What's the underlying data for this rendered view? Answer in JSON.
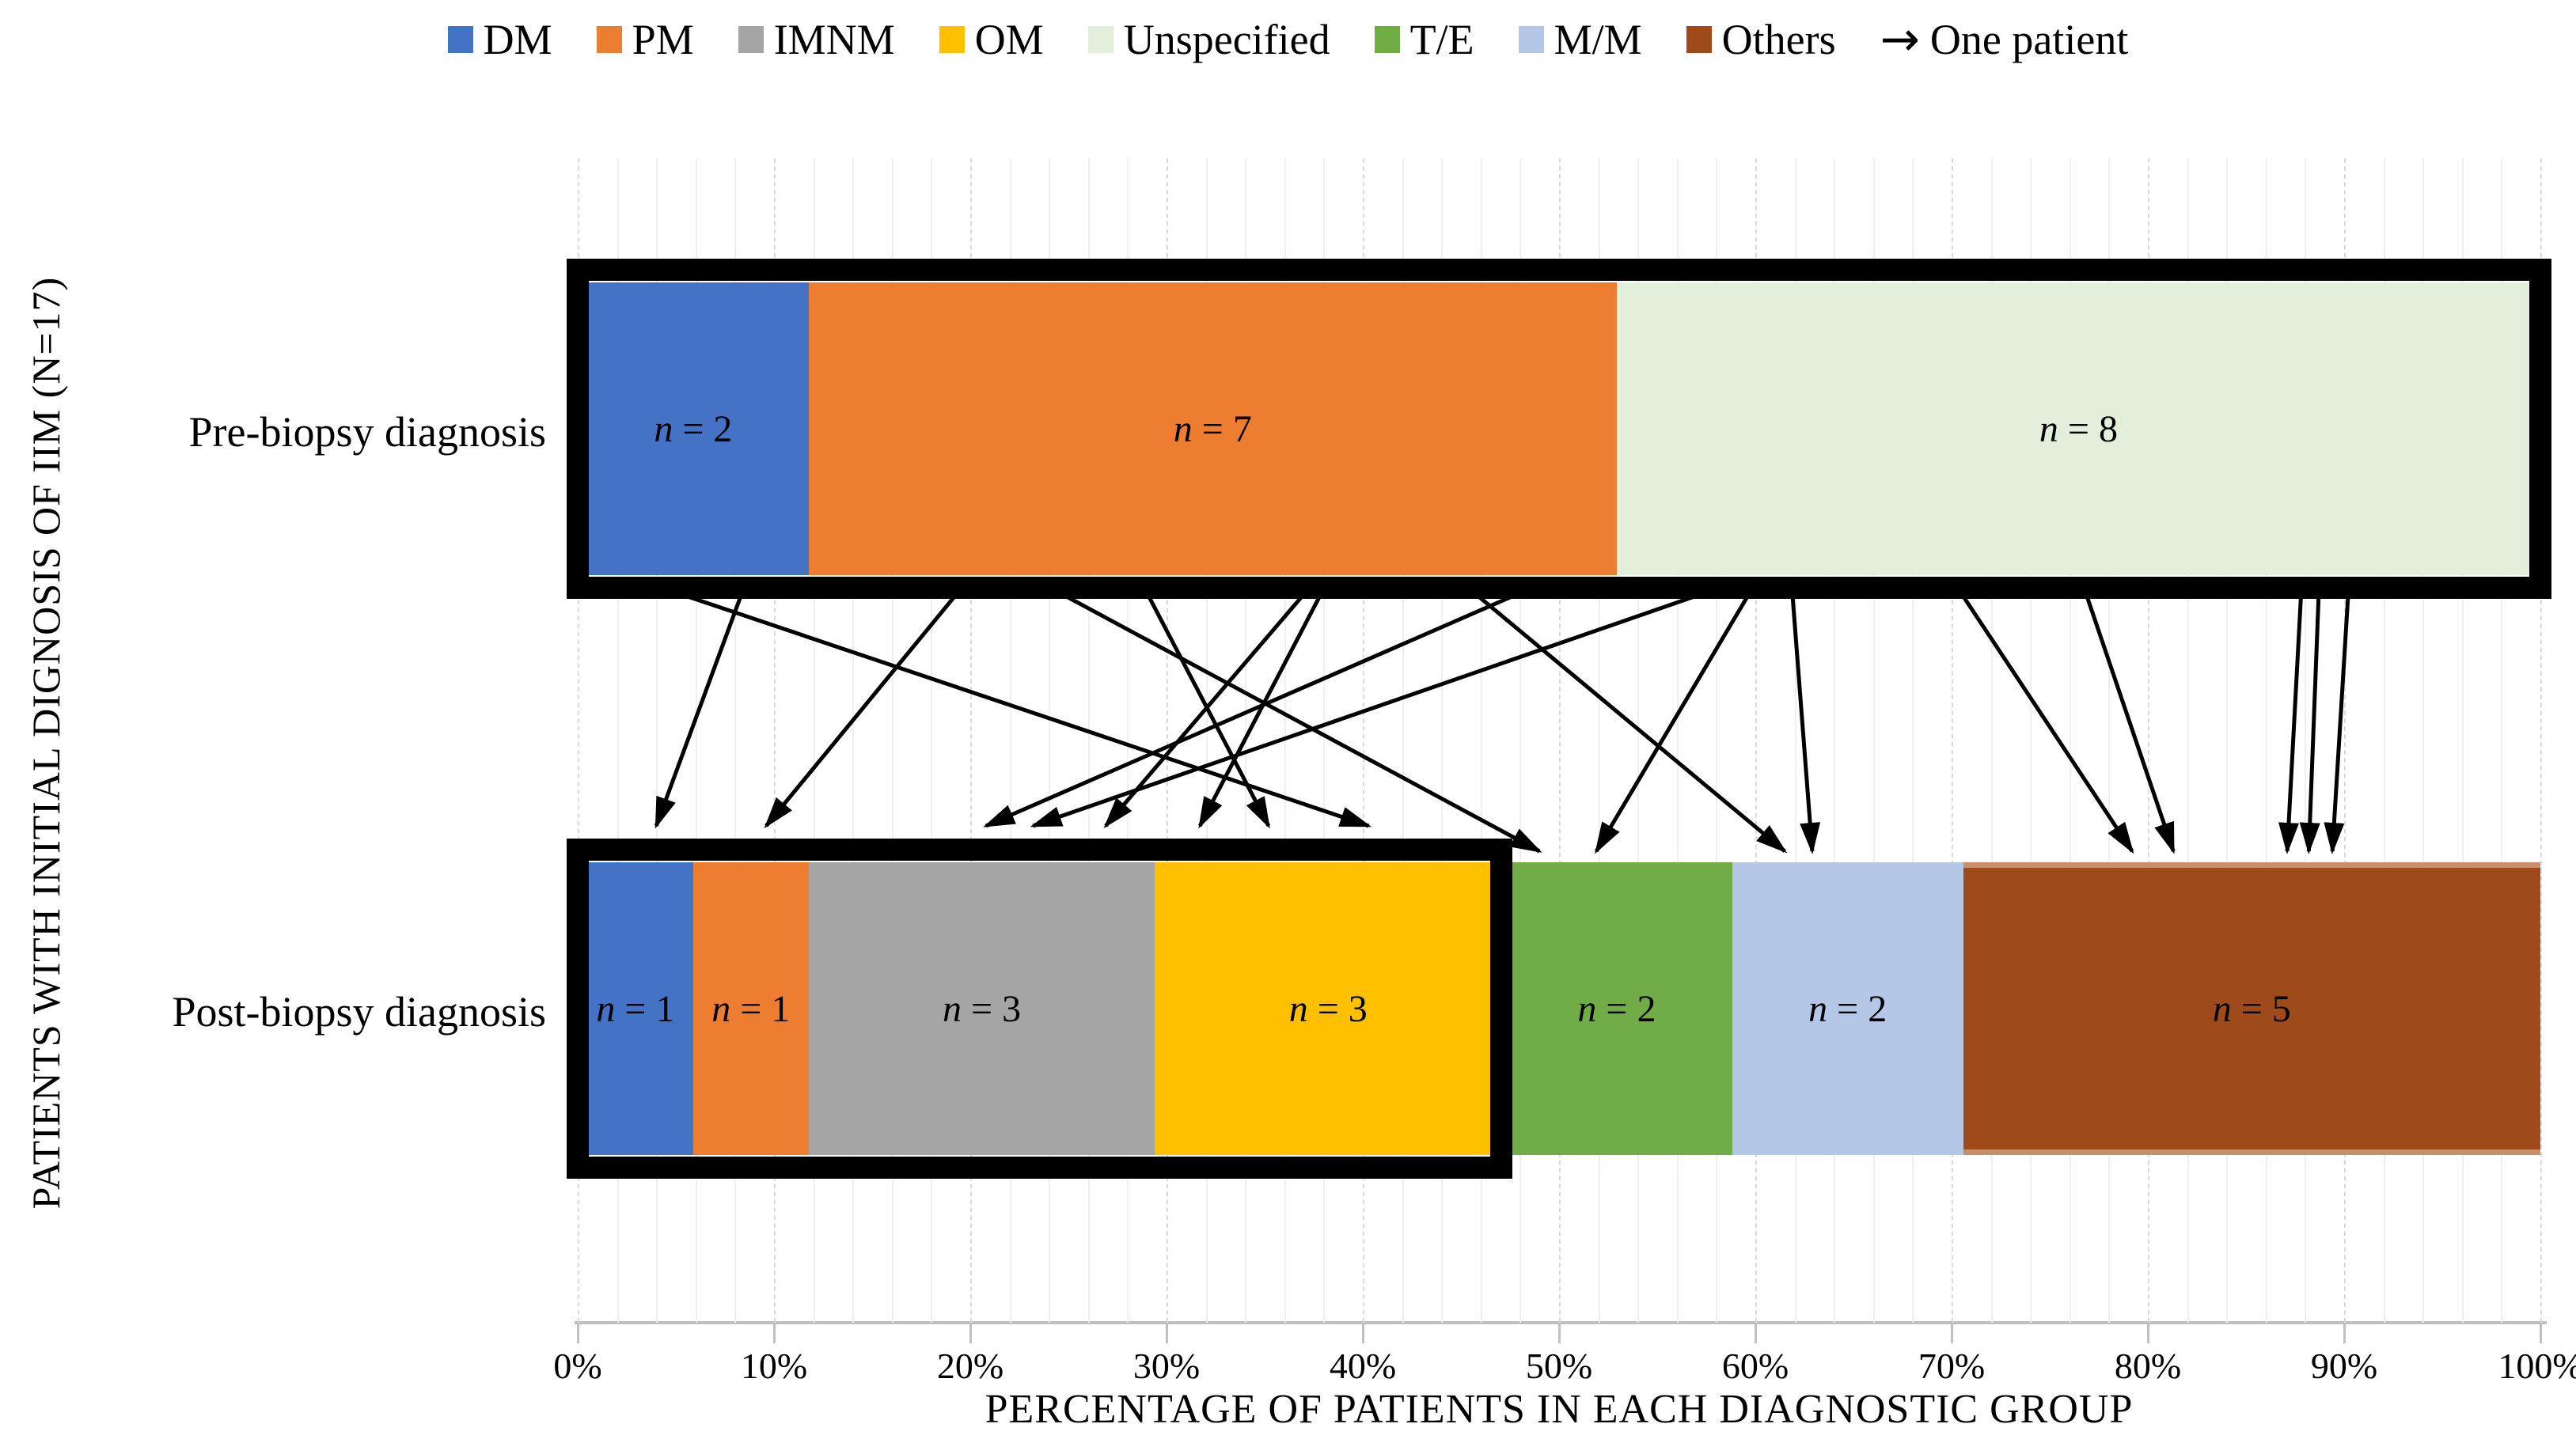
{
  "legend": {
    "arrow_label": "One patient"
  },
  "y_axis_title": "PATIENTS WITH INITIAL DIGNOSIS OF IIM (N=17)",
  "x_axis_title": "PERCENTAGE OF PATIENTS IN EACH DIAGNOSTIC GROUP",
  "rows": {
    "pre": "Pre-biopsy diagnosis",
    "post": "Post-biopsy diagnosis"
  },
  "chart_data": {
    "type": "bar",
    "variant": "horizontal-stacked-percent-flow",
    "total_patients": 17,
    "categories": [
      "Pre-biopsy diagnosis",
      "Post-biopsy diagnosis"
    ],
    "groups": [
      {
        "name": "DM",
        "color": "#4472C4"
      },
      {
        "name": "PM",
        "color": "#ED7D31"
      },
      {
        "name": "IMNM",
        "color": "#A5A5A5"
      },
      {
        "name": "OM",
        "color": "#FFC000"
      },
      {
        "name": "Unspecified",
        "color": "#E2EFDA"
      },
      {
        "name": "T/E",
        "color": "#70AD47"
      },
      {
        "name": "M/M",
        "color": "#B4C7E7"
      },
      {
        "name": "Others",
        "color": "#9E4A1B",
        "edge_color": "#C7906A"
      }
    ],
    "series": [
      {
        "name": "DM",
        "values": [
          2,
          1
        ]
      },
      {
        "name": "PM",
        "values": [
          7,
          1
        ]
      },
      {
        "name": "IMNM",
        "values": [
          0,
          3
        ]
      },
      {
        "name": "OM",
        "values": [
          0,
          3
        ]
      },
      {
        "name": "Unspecified",
        "values": [
          8,
          0
        ]
      },
      {
        "name": "T/E",
        "values": [
          0,
          2
        ]
      },
      {
        "name": "M/M",
        "values": [
          0,
          2
        ]
      },
      {
        "name": "Others",
        "values": [
          0,
          5
        ]
      }
    ],
    "segment_label_format": "n = {value}",
    "framed_extent_pct": [
      100,
      47.06
    ],
    "xlim": [
      0,
      100
    ],
    "x_ticks": [
      "0%",
      "10%",
      "20%",
      "30%",
      "40%",
      "50%",
      "60%",
      "70%",
      "80%",
      "90%",
      "100%"
    ],
    "gridlines": {
      "minor_step_pct": 2,
      "major_step_pct": 10
    },
    "legend_arrow_meaning": "One patient",
    "flows": [
      {
        "from": "DM",
        "to": "OM",
        "from_pct": 5.6,
        "to_pct": 40.3
      },
      {
        "from": "DM",
        "to": "DM",
        "from_pct": 8.3,
        "to_pct": 4.0
      },
      {
        "from": "PM",
        "to": "PM",
        "from_pct": 19.2,
        "to_pct": 9.6
      },
      {
        "from": "PM",
        "to": "T/E",
        "from_pct": 24.9,
        "to_pct": 49.0
      },
      {
        "from": "PM",
        "to": "OM",
        "from_pct": 29.1,
        "to_pct": 35.2
      },
      {
        "from": "PM",
        "to": "IMNM",
        "from_pct": 36.9,
        "to_pct": 26.9
      },
      {
        "from": "PM",
        "to": "OM",
        "from_pct": 37.8,
        "to_pct": 31.7
      },
      {
        "from": "PM",
        "to": "M/M",
        "from_pct": 45.9,
        "to_pct": 61.5
      },
      {
        "from": "PM",
        "to": "IMNM",
        "from_pct": 47.6,
        "to_pct": 20.8
      },
      {
        "from": "Unspecified",
        "to": "IMNM",
        "from_pct": 56.9,
        "to_pct": 23.2
      },
      {
        "from": "Unspecified",
        "to": "T/E",
        "from_pct": 59.6,
        "to_pct": 51.9
      },
      {
        "from": "Unspecified",
        "to": "M/M",
        "from_pct": 61.9,
        "to_pct": 62.9
      },
      {
        "from": "Unspecified",
        "to": "Others",
        "from_pct": 70.6,
        "to_pct": 79.2
      },
      {
        "from": "Unspecified",
        "to": "Others",
        "from_pct": 76.9,
        "to_pct": 81.3
      },
      {
        "from": "Unspecified",
        "to": "Others",
        "from_pct": 87.8,
        "to_pct": 87.1
      },
      {
        "from": "Unspecified",
        "to": "Others",
        "from_pct": 88.7,
        "to_pct": 88.2
      },
      {
        "from": "Unspecified",
        "to": "Others",
        "from_pct": 90.2,
        "to_pct": 89.4
      }
    ]
  }
}
